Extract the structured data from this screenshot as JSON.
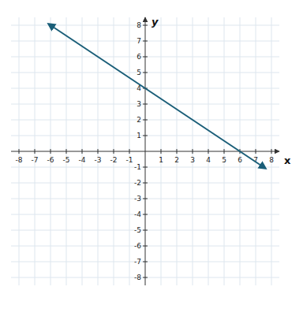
{
  "chart_data": {
    "type": "line",
    "xlabel": "x",
    "ylabel": "y",
    "x": [
      -6.0,
      7.5
    ],
    "values": [
      8,
      -1
    ],
    "color": "#1a5e78",
    "xlim": [
      -8.5,
      8.5
    ],
    "ylim": [
      -8.5,
      8.5
    ],
    "xticks": [
      -8,
      -7,
      -6,
      -5,
      -4,
      -3,
      -2,
      -1,
      1,
      2,
      3,
      4,
      5,
      6,
      7,
      8
    ],
    "yticks": [
      -8,
      -7,
      -6,
      -5,
      -4,
      -3,
      -2,
      -1,
      1,
      2,
      3,
      4,
      5,
      6,
      7,
      8
    ],
    "grid": true
  }
}
